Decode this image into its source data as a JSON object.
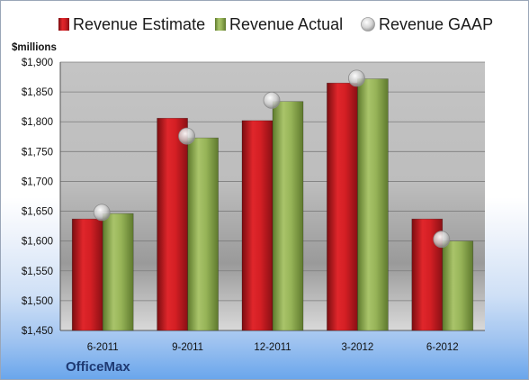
{
  "chart_data": {
    "type": "bar",
    "categories": [
      "6-2011",
      "9-2011",
      "12-2011",
      "3-2012",
      "6-2012"
    ],
    "series": [
      {
        "name": "Revenue Estimate",
        "kind": "bar",
        "color": "#c81a1f",
        "values": [
          1637,
          1806,
          1802,
          1865,
          1637
        ]
      },
      {
        "name": "Revenue Actual",
        "kind": "bar",
        "color": "#8fae4f",
        "values": [
          1646,
          1773,
          1834,
          1872,
          1600
        ]
      },
      {
        "name": "Revenue GAAP",
        "kind": "marker",
        "color": "#c8c8c8",
        "values": [
          1648,
          1776,
          1836,
          1873,
          1603
        ]
      }
    ],
    "ylim": [
      1450,
      1900
    ],
    "yticks": [
      1450,
      1500,
      1550,
      1600,
      1650,
      1700,
      1750,
      1800,
      1850,
      1900
    ],
    "ytick_labels": [
      "$1,450",
      "$1,500",
      "$1,550",
      "$1,600",
      "$1,650",
      "$1,700",
      "$1,750",
      "$1,800",
      "$1,850",
      "$1,900"
    ],
    "unit_label": "$millions",
    "company": "OfficeMax",
    "legend_position": "top",
    "grid": true,
    "plot_background": "#c0c0c0"
  }
}
